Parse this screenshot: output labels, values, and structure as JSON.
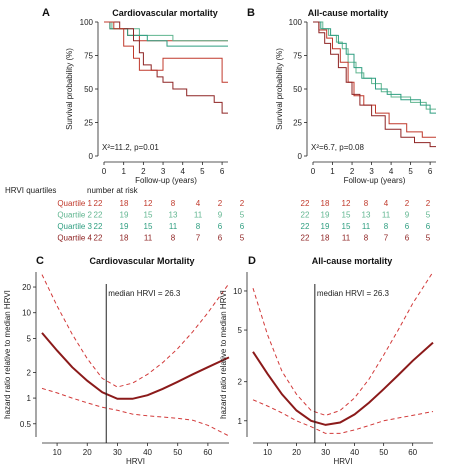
{
  "colors": {
    "q1": "#c0392b",
    "q2": "#5fb58f",
    "q3": "#2e9e80",
    "q4": "#8e2323",
    "curve": "#8b1a1a",
    "ci": "#d23a3a",
    "axis": "#222222"
  },
  "chart_data": [
    {
      "panel": "A",
      "type": "line",
      "title": "Cardiovascular mortality",
      "xlabel": "Follow-up (years)",
      "ylabel": "Survival probability (%)",
      "xlim": [
        0,
        6.3
      ],
      "ylim": [
        0,
        100
      ],
      "xticks": [
        "0",
        "1",
        "2",
        "3",
        "4",
        "5",
        "6"
      ],
      "yticks": [
        "0",
        "25",
        "50",
        "75",
        "100"
      ],
      "annotation": "X²=11.2, p=0.01",
      "series": [
        {
          "key": "q1",
          "points": [
            [
              0,
              100
            ],
            [
              0.3,
              95
            ],
            [
              1.2,
              90
            ],
            [
              1.8,
              86
            ],
            [
              6.3,
              86
            ]
          ]
        },
        {
          "key": "q2",
          "points": [
            [
              0,
              100
            ],
            [
              0.4,
              95
            ],
            [
              1.8,
              90
            ],
            [
              3.5,
              86
            ],
            [
              6.3,
              86
            ]
          ]
        },
        {
          "key": "q3",
          "points": [
            [
              0,
              100
            ],
            [
              0.3,
              95
            ],
            [
              1.2,
              90
            ],
            [
              2.2,
              86
            ],
            [
              3.2,
              82
            ],
            [
              6.3,
              82
            ]
          ]
        },
        {
          "key": "q4",
          "points": [
            [
              0,
              100
            ],
            [
              0.8,
              95
            ],
            [
              1.5,
              86
            ],
            [
              1.8,
              77
            ],
            [
              2.0,
              68
            ],
            [
              2.4,
              64
            ],
            [
              2.7,
              59
            ],
            [
              3.0,
              55
            ],
            [
              3.5,
              50
            ],
            [
              4.2,
              45
            ],
            [
              5.6,
              40
            ],
            [
              6.0,
              32
            ],
            [
              6.3,
              32
            ]
          ]
        },
        {
          "key": "q1",
          "points": [
            [
              0,
              100
            ],
            [
              0.5,
              95
            ],
            [
              1.0,
              82
            ],
            [
              1.5,
              73
            ],
            [
              1.8,
              64
            ],
            [
              2.5,
              64
            ],
            [
              3.0,
              73
            ],
            [
              3.01,
              73
            ],
            [
              5.8,
              73
            ],
            [
              6.0,
              55
            ],
            [
              6.3,
              55
            ]
          ]
        }
      ]
    },
    {
      "panel": "B",
      "type": "line",
      "title": "All-cause mortality",
      "xlabel": "Follow-up (years)",
      "ylabel": "Survival probability (%)",
      "xlim": [
        0,
        6.3
      ],
      "ylim": [
        0,
        100
      ],
      "xticks": [
        "0",
        "1",
        "2",
        "3",
        "4",
        "5",
        "6"
      ],
      "yticks": [
        "0",
        "25",
        "50",
        "75",
        "100"
      ],
      "annotation": "X²=6.7, p=0.08",
      "series": [
        {
          "key": "q2",
          "points": [
            [
              0,
              100
            ],
            [
              0.5,
              95
            ],
            [
              0.8,
              90
            ],
            [
              1.2,
              85
            ],
            [
              1.5,
              80
            ],
            [
              1.8,
              70
            ],
            [
              2.2,
              62
            ],
            [
              2.6,
              58
            ],
            [
              3.0,
              54
            ],
            [
              3.5,
              48
            ],
            [
              4.0,
              44
            ],
            [
              5.0,
              40
            ],
            [
              5.8,
              35
            ],
            [
              6.3,
              35
            ]
          ]
        },
        {
          "key": "q3",
          "points": [
            [
              0,
              100
            ],
            [
              0.4,
              95
            ],
            [
              0.9,
              90
            ],
            [
              1.3,
              84
            ],
            [
              1.7,
              76
            ],
            [
              2.1,
              66
            ],
            [
              2.5,
              58
            ],
            [
              3.2,
              50
            ],
            [
              3.8,
              46
            ],
            [
              4.5,
              42
            ],
            [
              5.5,
              38
            ],
            [
              6.0,
              32
            ],
            [
              6.3,
              32
            ]
          ]
        },
        {
          "key": "q1",
          "points": [
            [
              0,
              100
            ],
            [
              0.3,
              94
            ],
            [
              0.7,
              88
            ],
            [
              1.0,
              80
            ],
            [
              1.4,
              70
            ],
            [
              1.8,
              55
            ],
            [
              2.1,
              45
            ],
            [
              2.6,
              38
            ],
            [
              3.2,
              32
            ],
            [
              3.9,
              24
            ],
            [
              4.8,
              18
            ],
            [
              5.6,
              14
            ],
            [
              6.3,
              14
            ]
          ]
        },
        {
          "key": "q4",
          "points": [
            [
              0,
              100
            ],
            [
              0.3,
              92
            ],
            [
              0.6,
              84
            ],
            [
              0.9,
              76
            ],
            [
              1.3,
              66
            ],
            [
              1.7,
              55
            ],
            [
              2.0,
              46
            ],
            [
              2.4,
              38
            ],
            [
              3.0,
              30
            ],
            [
              3.7,
              20
            ],
            [
              4.5,
              14
            ],
            [
              5.2,
              10
            ],
            [
              6.0,
              7
            ],
            [
              6.3,
              7
            ]
          ]
        }
      ]
    },
    {
      "panel": "C",
      "type": "line",
      "title": "Cardiovascular Mortality",
      "xlabel": "HRVI",
      "ylabel": "hazard ratio relative to median HRVI",
      "scale": "log",
      "xlim": [
        5,
        67
      ],
      "ylim": [
        0.35,
        30
      ],
      "xticks": [
        "10",
        "20",
        "30",
        "40",
        "50",
        "60"
      ],
      "yticks": [
        0.5,
        1,
        2,
        5,
        10,
        20
      ],
      "median_x": 26.3,
      "median_label": "median HRVI = 26.3",
      "series": [
        {
          "key": "curve",
          "points": [
            [
              5,
              5.8
            ],
            [
              10,
              3.6
            ],
            [
              15,
              2.3
            ],
            [
              20,
              1.6
            ],
            [
              25,
              1.17
            ],
            [
              30,
              0.98
            ],
            [
              35,
              0.98
            ],
            [
              40,
              1.08
            ],
            [
              45,
              1.28
            ],
            [
              50,
              1.55
            ],
            [
              55,
              1.9
            ],
            [
              60,
              2.3
            ],
            [
              67,
              3.0
            ]
          ]
        },
        {
          "key": "ci_upper",
          "points": [
            [
              5,
              28
            ],
            [
              10,
              12
            ],
            [
              15,
              5.6
            ],
            [
              20,
              2.9
            ],
            [
              25,
              1.7
            ],
            [
              30,
              1.35
            ],
            [
              35,
              1.5
            ],
            [
              40,
              1.9
            ],
            [
              45,
              2.6
            ],
            [
              50,
              3.8
            ],
            [
              55,
              6
            ],
            [
              60,
              10
            ],
            [
              67,
              22
            ]
          ]
        },
        {
          "key": "ci_lower",
          "points": [
            [
              5,
              1.3
            ],
            [
              10,
              1.15
            ],
            [
              15,
              1.0
            ],
            [
              20,
              0.88
            ],
            [
              25,
              0.78
            ],
            [
              30,
              0.72
            ],
            [
              35,
              0.65
            ],
            [
              40,
              0.62
            ],
            [
              45,
              0.6
            ],
            [
              50,
              0.58
            ],
            [
              55,
              0.55
            ],
            [
              60,
              0.48
            ],
            [
              67,
              0.36
            ]
          ]
        }
      ]
    },
    {
      "panel": "D",
      "type": "line",
      "title": "All-cause mortality",
      "xlabel": "HRVI",
      "ylabel": "hazard ratio relative to median HRVI",
      "scale": "log",
      "xlim": [
        5,
        67
      ],
      "ylim": [
        0.75,
        14
      ],
      "xticks": [
        "10",
        "20",
        "30",
        "40",
        "50",
        "60"
      ],
      "yticks": [
        1,
        2,
        5,
        10
      ],
      "median_x": 26.3,
      "median_label": "median HRVI = 26.3",
      "series": [
        {
          "key": "curve",
          "points": [
            [
              5,
              3.4
            ],
            [
              10,
              2.3
            ],
            [
              15,
              1.6
            ],
            [
              20,
              1.2
            ],
            [
              25,
              1.0
            ],
            [
              30,
              0.93
            ],
            [
              35,
              0.97
            ],
            [
              40,
              1.12
            ],
            [
              45,
              1.38
            ],
            [
              50,
              1.75
            ],
            [
              55,
              2.25
            ],
            [
              60,
              2.9
            ],
            [
              67,
              4.0
            ]
          ]
        },
        {
          "key": "ci_upper",
          "points": [
            [
              5,
              10.5
            ],
            [
              10,
              4.6
            ],
            [
              15,
              2.4
            ],
            [
              20,
              1.6
            ],
            [
              25,
              1.2
            ],
            [
              30,
              1.1
            ],
            [
              35,
              1.2
            ],
            [
              40,
              1.5
            ],
            [
              45,
              2.1
            ],
            [
              50,
              3.2
            ],
            [
              55,
              5
            ],
            [
              60,
              8
            ],
            [
              67,
              14
            ]
          ]
        },
        {
          "key": "ci_lower",
          "points": [
            [
              5,
              1.45
            ],
            [
              10,
              1.3
            ],
            [
              15,
              1.15
            ],
            [
              20,
              1.0
            ],
            [
              25,
              0.9
            ],
            [
              30,
              0.8
            ],
            [
              35,
              0.8
            ],
            [
              40,
              0.85
            ],
            [
              45,
              0.92
            ],
            [
              50,
              1.0
            ],
            [
              55,
              1.05
            ],
            [
              60,
              1.1
            ],
            [
              67,
              1.18
            ]
          ]
        }
      ]
    }
  ],
  "risk_table": {
    "header_left": "HRVI quartiles",
    "header_right": "number at risk",
    "rows_a": [
      {
        "key": "q1",
        "label": "Quartile 1",
        "values": [
          "22",
          "18",
          "12",
          "8",
          "4",
          "2",
          "2"
        ]
      },
      {
        "key": "q2",
        "label": "Quartile 2",
        "values": [
          "22",
          "19",
          "15",
          "13",
          "11",
          "9",
          "5"
        ]
      },
      {
        "key": "q3",
        "label": "Quartile 3",
        "values": [
          "22",
          "19",
          "15",
          "11",
          "8",
          "6",
          "6"
        ]
      },
      {
        "key": "q4",
        "label": "Quartile 4",
        "values": [
          "22",
          "18",
          "11",
          "8",
          "7",
          "6",
          "5"
        ]
      }
    ],
    "rows_b": [
      {
        "key": "q1",
        "values": [
          "22",
          "18",
          "12",
          "8",
          "4",
          "2",
          "2"
        ]
      },
      {
        "key": "q2",
        "values": [
          "22",
          "19",
          "15",
          "13",
          "11",
          "9",
          "5"
        ]
      },
      {
        "key": "q3",
        "values": [
          "22",
          "19",
          "15",
          "11",
          "8",
          "6",
          "6"
        ]
      },
      {
        "key": "q4",
        "values": [
          "22",
          "18",
          "11",
          "8",
          "7",
          "6",
          "5"
        ]
      }
    ]
  }
}
